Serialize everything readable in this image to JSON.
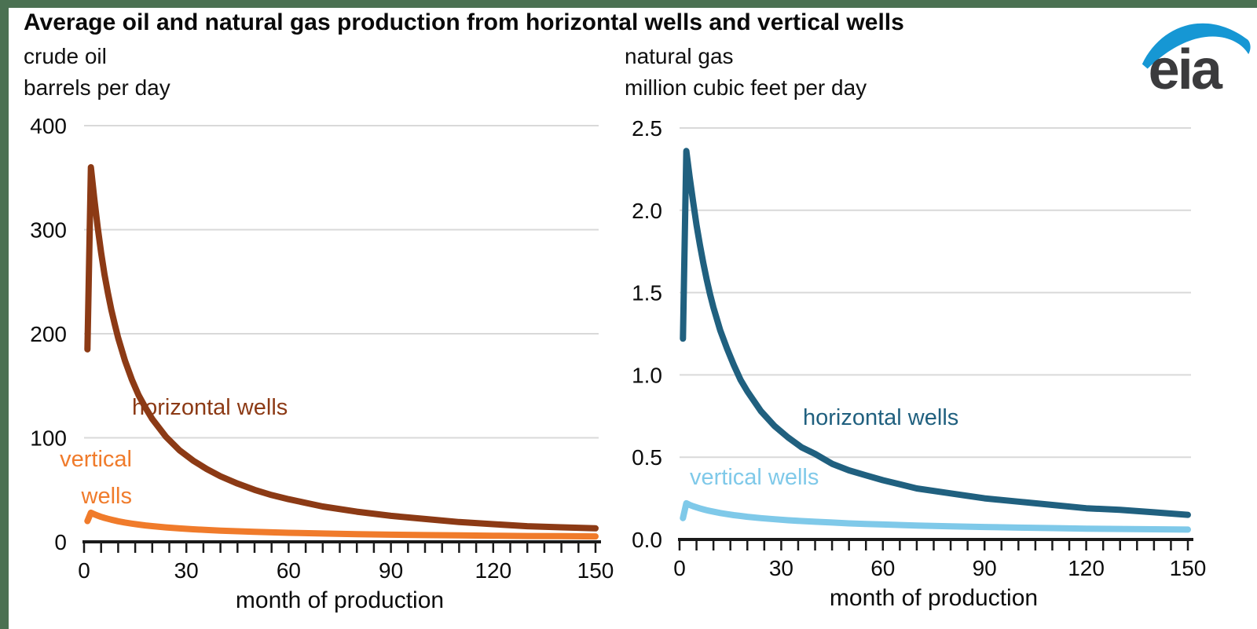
{
  "page": {
    "title": "Average oil and natural gas production from horizontal wells and vertical wells",
    "logo_text": "eia"
  },
  "colors": {
    "border_green": "#4B7152",
    "grid": "#D9D9D9",
    "axis": "#1A1A1A",
    "oil_horizontal": "#8C3A15",
    "oil_vertical": "#F07B2B",
    "gas_horizontal": "#20607F",
    "gas_vertical": "#7FC9E9",
    "logo_blue": "#1697D4",
    "logo_gray": "#3B3B3D"
  },
  "chart_data": [
    {
      "type": "line",
      "panel_title": "crude oil",
      "ylabel": "barrels per day",
      "xlabel": "month of production",
      "xlim": [
        0,
        150
      ],
      "ylim": [
        0,
        400
      ],
      "xticks": [
        0,
        30,
        60,
        90,
        120,
        150
      ],
      "xtick_labels": [
        "0",
        "30",
        "60",
        "90",
        "120",
        "150"
      ],
      "xtick_minor_step": 5,
      "yticks": [
        0,
        100,
        200,
        300,
        400
      ],
      "ytick_labels": [
        "0",
        "100",
        "200",
        "300",
        "400"
      ],
      "grid": "horizontal-gray-lines",
      "legend_position": "inline-annotations",
      "x": [
        1,
        2,
        3,
        4,
        5,
        6,
        7,
        8,
        9,
        10,
        12,
        14,
        16,
        18,
        20,
        24,
        28,
        32,
        36,
        40,
        45,
        50,
        55,
        60,
        70,
        80,
        90,
        100,
        110,
        120,
        130,
        140,
        150
      ],
      "series": [
        {
          "name": "horizontal wells",
          "label": "horizontal wells",
          "color_key": "oil_horizontal",
          "peak_value": 360,
          "values": [
            185,
            360,
            330,
            302,
            278,
            257,
            239,
            223,
            209,
            196,
            174,
            156,
            141,
            129,
            118,
            101,
            88,
            78,
            70,
            63,
            56,
            50,
            45,
            41,
            34,
            29,
            25,
            22,
            19,
            17,
            15,
            14,
            13
          ]
        },
        {
          "name": "vertical wells",
          "label": "vertical wells",
          "label_lines": [
            "vertical",
            "wells"
          ],
          "color_key": "oil_vertical",
          "peak_value": 28,
          "values": [
            20,
            28,
            26.5,
            25.2,
            24,
            23,
            22.1,
            21.3,
            20.5,
            19.8,
            18.6,
            17.5,
            16.6,
            15.8,
            15.1,
            13.9,
            12.9,
            12.1,
            11.4,
            10.8,
            10.2,
            9.6,
            9.1,
            8.7,
            8,
            7.4,
            6.9,
            6.5,
            6.2,
            5.9,
            5.6,
            5.4,
            5.2
          ]
        }
      ]
    },
    {
      "type": "line",
      "panel_title": "natural gas",
      "ylabel": "million cubic feet per day",
      "xlabel": "month of production",
      "xlim": [
        0,
        150
      ],
      "ylim": [
        0,
        2.5
      ],
      "xticks": [
        0,
        30,
        60,
        90,
        120,
        150
      ],
      "xtick_labels": [
        "0",
        "30",
        "60",
        "90",
        "120",
        "150"
      ],
      "xtick_minor_step": 5,
      "yticks": [
        0,
        0.5,
        1,
        1.5,
        2,
        2.5
      ],
      "ytick_labels": [
        "0.0",
        "0.5",
        "1.0",
        "1.5",
        "2.0",
        "2.5"
      ],
      "grid": "horizontal-gray-lines",
      "legend_position": "inline-annotations",
      "x": [
        1,
        2,
        3,
        4,
        5,
        6,
        7,
        8,
        9,
        10,
        12,
        14,
        16,
        18,
        20,
        24,
        28,
        32,
        36,
        40,
        45,
        50,
        55,
        60,
        70,
        80,
        90,
        100,
        110,
        120,
        130,
        140,
        150
      ],
      "series": [
        {
          "name": "horizontal wells",
          "label": "horizontal wells",
          "color_key": "gas_horizontal",
          "peak_value": 2.36,
          "values": [
            1.22,
            2.36,
            2.2,
            2.05,
            1.91,
            1.79,
            1.68,
            1.58,
            1.49,
            1.41,
            1.27,
            1.16,
            1.06,
            0.97,
            0.9,
            0.78,
            0.69,
            0.62,
            0.56,
            0.52,
            0.46,
            0.42,
            0.39,
            0.36,
            0.31,
            0.28,
            0.25,
            0.23,
            0.21,
            0.19,
            0.18,
            0.165,
            0.15
          ]
        },
        {
          "name": "vertical wells",
          "label": "vertical wells",
          "color_key": "gas_vertical",
          "peak_value": 0.22,
          "values": [
            0.13,
            0.22,
            0.21,
            0.202,
            0.195,
            0.189,
            0.183,
            0.178,
            0.173,
            0.169,
            0.161,
            0.154,
            0.148,
            0.143,
            0.138,
            0.13,
            0.123,
            0.117,
            0.112,
            0.108,
            0.103,
            0.098,
            0.094,
            0.091,
            0.085,
            0.08,
            0.076,
            0.072,
            0.069,
            0.066,
            0.064,
            0.062,
            0.06
          ]
        }
      ]
    }
  ]
}
